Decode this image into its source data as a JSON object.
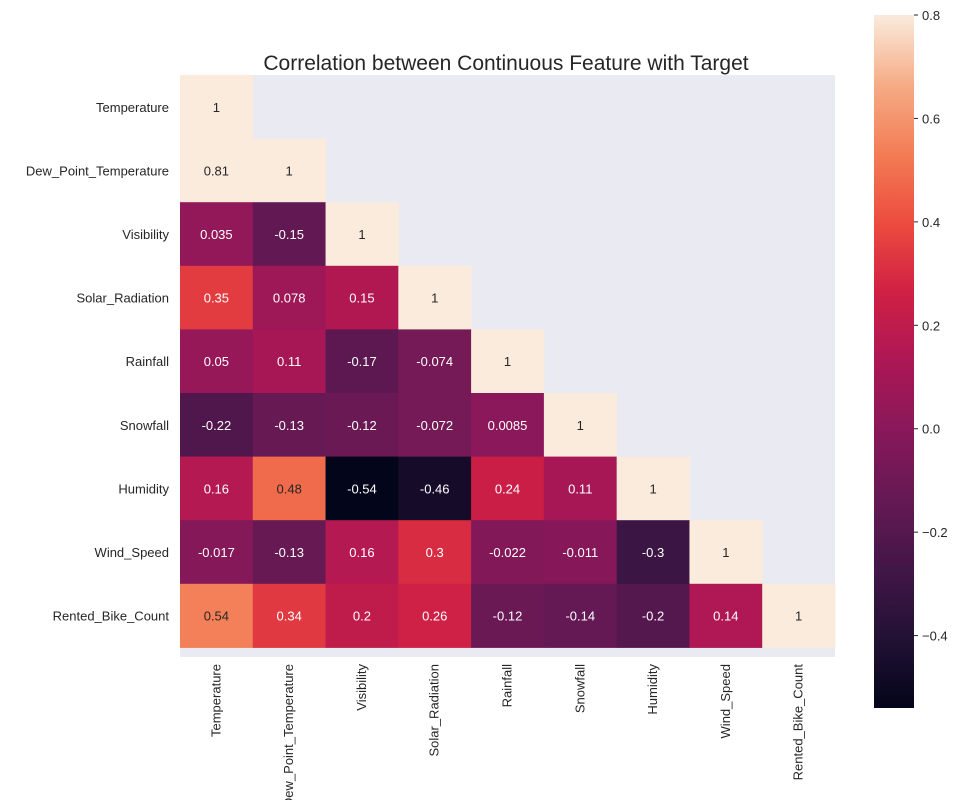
{
  "chart_data": {
    "type": "heatmap",
    "title": "Correlation between Continuous Feature with Target",
    "labels": [
      "Temperature",
      "Dew_Point_Temperature",
      "Visibility",
      "Solar_Radiation",
      "Rainfall",
      "Snowfall",
      "Humidity",
      "Wind_Speed",
      "Rented_Bike_Count"
    ],
    "matrix_lower": [
      [
        "1"
      ],
      [
        "0.81",
        "1"
      ],
      [
        "0.035",
        "-0.15",
        "1"
      ],
      [
        "0.35",
        "0.078",
        "0.15",
        "1"
      ],
      [
        "0.05",
        "0.11",
        "-0.17",
        "-0.074",
        "1"
      ],
      [
        "-0.22",
        "-0.13",
        "-0.12",
        "-0.072",
        "0.0085",
        "1"
      ],
      [
        "0.16",
        "0.48",
        "-0.54",
        "-0.46",
        "0.24",
        "0.11",
        "1"
      ],
      [
        "-0.017",
        "-0.13",
        "0.16",
        "0.3",
        "-0.022",
        "-0.011",
        "-0.3",
        "1"
      ],
      [
        "0.54",
        "0.34",
        "0.2",
        "0.26",
        "-0.12",
        "-0.14",
        "-0.2",
        "0.14",
        "1"
      ]
    ],
    "masked": "upper triangle",
    "colormap": "rocket",
    "vmin": -0.54,
    "vmax": 0.8,
    "colorbar_ticks": [
      "0.8",
      "0.6",
      "0.4",
      "0.2",
      "0.0",
      "−0.2",
      "−0.4"
    ],
    "colorbar_tick_values": [
      0.8,
      0.6,
      0.4,
      0.2,
      0.0,
      -0.2,
      -0.4
    ]
  }
}
